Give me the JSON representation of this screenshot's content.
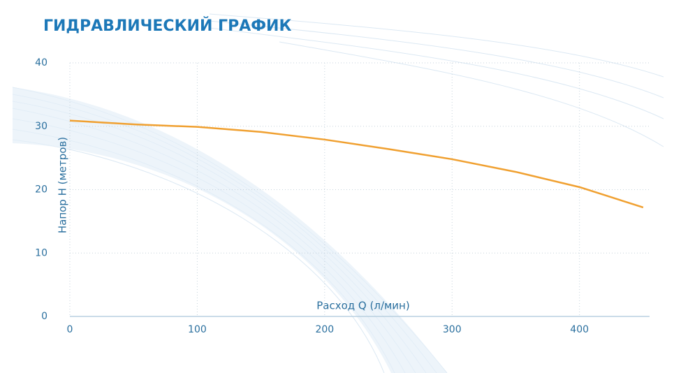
{
  "chart_data": {
    "type": "line",
    "title": "ГИДРАВЛИЧЕСКИЙ ГРАФИК",
    "xlabel": "Расход Q (л/мин)",
    "ylabel": "Напор Н (метров)",
    "x": [
      0,
      50,
      100,
      150,
      200,
      250,
      300,
      350,
      400,
      450
    ],
    "series": [
      {
        "color": "#f0a030",
        "values": [
          30.9,
          30.3,
          29.9,
          29.1,
          27.9,
          26.4,
          24.8,
          22.8,
          20.4,
          17.2
        ]
      }
    ],
    "xlim": [
      0,
      455
    ],
    "xticks": [
      0,
      100,
      200,
      300,
      400
    ],
    "ylim": [
      0,
      40
    ],
    "yticks": [
      0,
      10,
      20,
      30,
      40
    ],
    "grid": true
  }
}
